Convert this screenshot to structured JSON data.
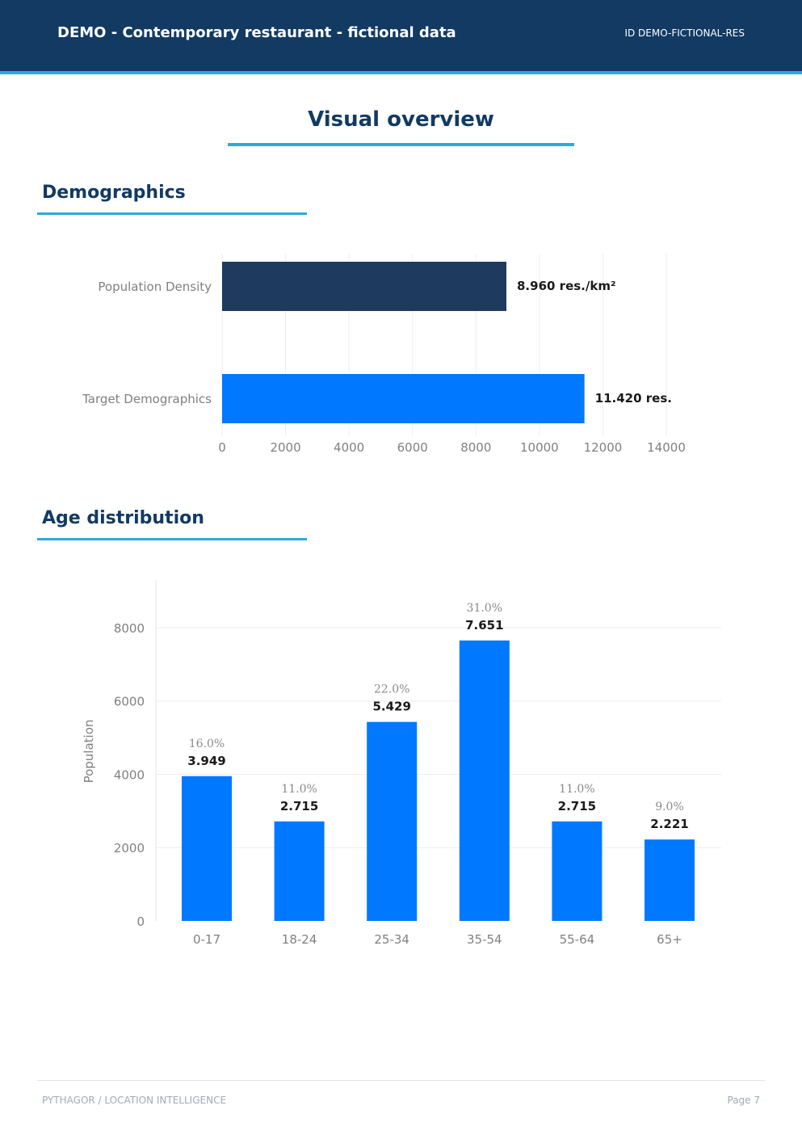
{
  "header": {
    "title": "DEMO - Contemporary restaurant - fictional data",
    "id_label": "ID DEMO-FICTIONAL-RES"
  },
  "page_title": "Visual overview",
  "sections": {
    "demographics": "Demographics",
    "age_distribution": "Age distribution"
  },
  "footer": {
    "left": "PYTHAGOR  /  LOCATION INTELLIGENCE",
    "right": "Page 7"
  },
  "colors": {
    "header_bg": "#123a63",
    "accent": "#29abe2",
    "bar_dark": "#1e3a5f",
    "bar_blue": "#0078ff"
  },
  "chart_data": [
    {
      "type": "bar",
      "orientation": "horizontal",
      "categories": [
        "Population Density",
        "Target Demographics"
      ],
      "values": [
        8960,
        11420
      ],
      "value_labels": [
        "8.960 res./km²",
        "11.420 res."
      ],
      "colors": [
        "#1e3a5f",
        "#0078ff"
      ],
      "xlim": [
        0,
        14000
      ],
      "xticks": [
        "0",
        "2000",
        "4000",
        "6000",
        "8000",
        "10000",
        "12000",
        "14000"
      ],
      "grid": "vertical"
    },
    {
      "type": "bar",
      "categories": [
        "0-17",
        "18-24",
        "25-34",
        "35-54",
        "55-64",
        "65+"
      ],
      "values": [
        3949,
        2715,
        5429,
        7651,
        2715,
        2221
      ],
      "value_labels": [
        "3.949",
        "2.715",
        "5.429",
        "7.651",
        "2.715",
        "2.221"
      ],
      "percent_labels": [
        "16.0%",
        "11.0%",
        "22.0%",
        "31.0%",
        "11.0%",
        "9.0%"
      ],
      "ylabel": "Population",
      "ylim": [
        0,
        9300
      ],
      "yticks": [
        "0",
        "2000",
        "4000",
        "6000",
        "8000"
      ],
      "color": "#0078ff",
      "grid": "horizontal"
    }
  ]
}
